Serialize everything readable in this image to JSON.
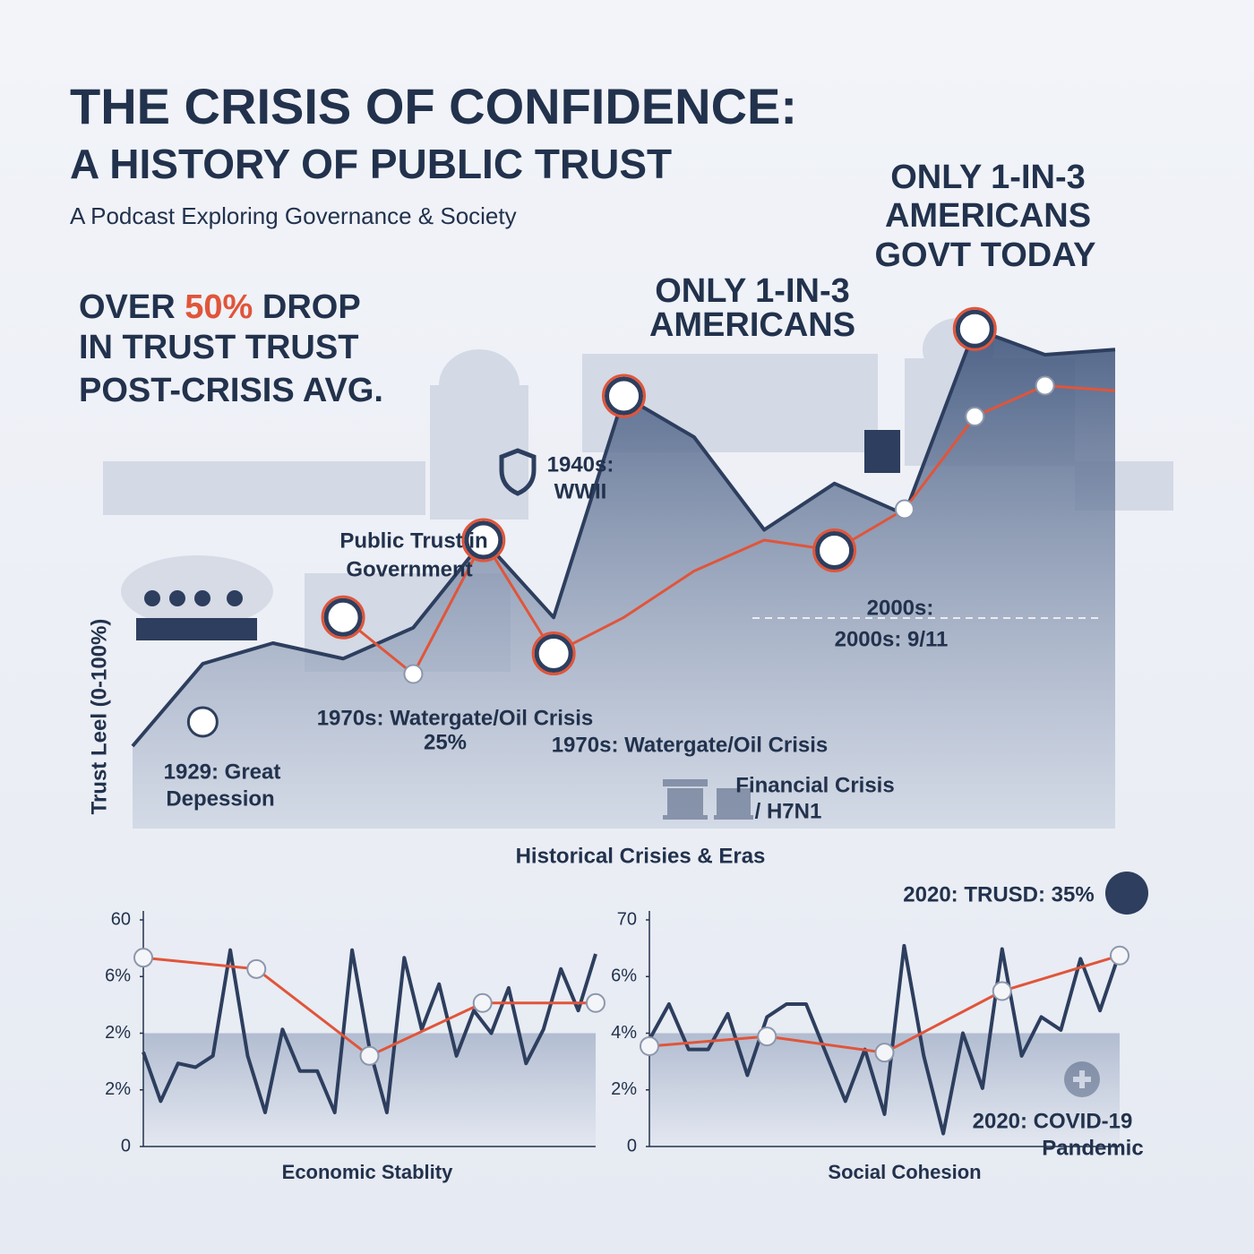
{
  "header": {
    "title_line1": "THE CRISIS OF CONFIDENCE:",
    "title_line2": "A HISTORY OF PUBLIC TRUST",
    "subtitle": "A Podcast Exploring Governance & Society"
  },
  "callout": {
    "prefix": "OVER ",
    "highlight": "50%",
    "suffix": " DROP",
    "line2": "IN TRUST TRUST",
    "line3": "POST-CRISIS AVG."
  },
  "chart_data": [
    {
      "type": "area",
      "y_label": "Trust Leel (0-100%)",
      "x_label": "Historical Crisies & Eras",
      "ylim": [
        0,
        100
      ],
      "series": [
        {
          "color": "#2d3e5e",
          "values": [
            16,
            32,
            36,
            33,
            39,
            56,
            41,
            84,
            76,
            58,
            67,
            61,
            97,
            92,
            93
          ]
        },
        {
          "color": "#e0553a",
          "values": [
            null,
            null,
            null,
            41,
            30,
            56,
            34,
            41,
            50,
            56,
            54,
            62,
            80,
            86,
            85
          ]
        }
      ],
      "annotations": [
        [
          "ONLY 1-IN-3",
          "AMERICANS",
          "GOVT TODAY"
        ],
        [
          "ONLY 1-IN-3",
          "AMERICANS"
        ],
        [
          "1940s:",
          "WWII"
        ],
        [
          "Public Trust in",
          "Government"
        ],
        [
          "2000s:",
          "2000s: 9/11"
        ],
        [
          "1970s: Watergate/Oil Crisis",
          "25%"
        ],
        [
          "1970s: Watergate/Oil Crisis"
        ],
        [
          "1929: Great",
          "Depession"
        ],
        [
          "Financial Crisis",
          "/ H7N1"
        ]
      ]
    },
    {
      "type": "line",
      "x_label": "Economic Stablity",
      "ylim": [
        0,
        60
      ],
      "yticks": [
        0,
        {
          "value": 15,
          "label": "2%"
        },
        {
          "value": 30,
          "label": "2%"
        },
        {
          "value": 45,
          "label": "6%"
        },
        60
      ],
      "series": [
        {
          "color": "#2d3e5e",
          "values": [
            25,
            12,
            22,
            21,
            24,
            52,
            24,
            9,
            31,
            20,
            20,
            9,
            52,
            26,
            9,
            50,
            31,
            43,
            24,
            36,
            30,
            42,
            22,
            31,
            47,
            36,
            51
          ]
        },
        {
          "color": "#e0553a",
          "values": [
            50,
            47,
            24,
            38,
            38
          ]
        }
      ]
    },
    {
      "type": "line",
      "x_label": "Social Cohesion",
      "ylim": [
        0,
        70
      ],
      "yticks": [
        0,
        {
          "value": 17.5,
          "label": "2%"
        },
        {
          "value": 35,
          "label": "4%"
        },
        {
          "value": 52.5,
          "label": "6%"
        },
        70
      ],
      "series": [
        {
          "color": "#2d3e5e",
          "values": [
            33,
            44,
            30,
            30,
            41,
            22,
            40,
            44,
            44,
            29,
            14,
            30,
            10,
            62,
            28,
            4,
            35,
            18,
            61,
            28,
            40,
            36,
            58,
            42,
            60
          ]
        },
        {
          "color": "#e0553a",
          "values": [
            31,
            34,
            29,
            48,
            59
          ]
        }
      ],
      "annotations": [
        [
          "2020: TRUSD: 35%"
        ],
        [
          "2020: COVID-19",
          "Pandemic"
        ]
      ]
    }
  ]
}
